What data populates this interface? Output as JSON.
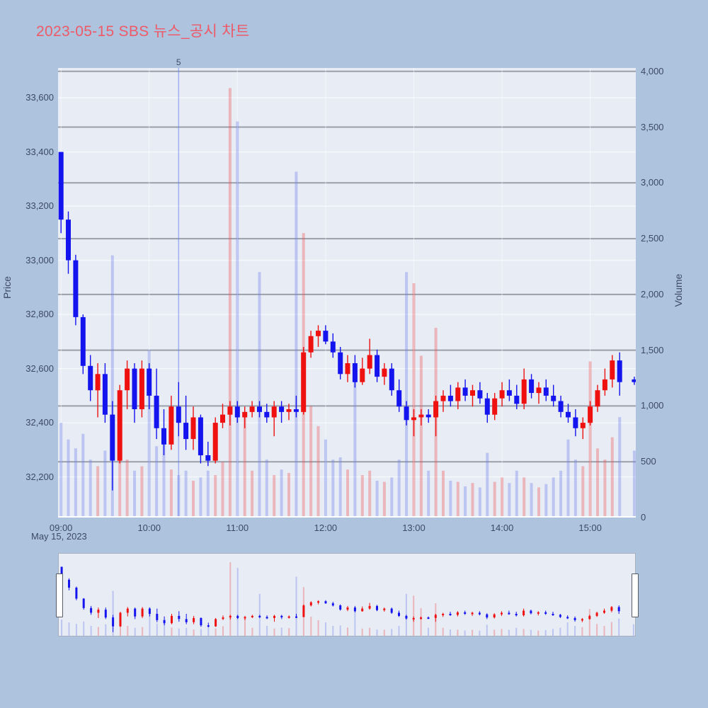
{
  "title": "2023-05-15 SBS 뉴스_공시 차트",
  "date_label": "May 15, 2023",
  "axes": {
    "price_title": "Price",
    "volume_title": "Volume",
    "price_ticks": [
      {
        "label": "33,600",
        "value": 33600
      },
      {
        "label": "33,400",
        "value": 33400
      },
      {
        "label": "33,200",
        "value": 33200
      },
      {
        "label": "33,000",
        "value": 33000
      },
      {
        "label": "32,800",
        "value": 32800
      },
      {
        "label": "32,600",
        "value": 32600
      },
      {
        "label": "32,400",
        "value": 32400
      },
      {
        "label": "32,200",
        "value": 32200
      }
    ],
    "volume_ticks": [
      {
        "label": "4,000",
        "value": 4000
      },
      {
        "label": "3,500",
        "value": 3500
      },
      {
        "label": "3,000",
        "value": 3000
      },
      {
        "label": "2,500",
        "value": 2500
      },
      {
        "label": "2,000",
        "value": 2000
      },
      {
        "label": "1,500",
        "value": 1500
      },
      {
        "label": "1,000",
        "value": 1000
      },
      {
        "label": "500",
        "value": 500
      },
      {
        "label": "0",
        "value": 0
      }
    ],
    "time_ticks": [
      {
        "label": "09:00",
        "minute": 0
      },
      {
        "label": "10:00",
        "minute": 60
      },
      {
        "label": "11:00",
        "minute": 120
      },
      {
        "label": "12:00",
        "minute": 180
      },
      {
        "label": "13:00",
        "minute": 240
      },
      {
        "label": "14:00",
        "minute": 300
      },
      {
        "label": "15:00",
        "minute": 360
      }
    ]
  },
  "annotation": {
    "label": "5",
    "minute": 80,
    "time": "10:20"
  },
  "colors": {
    "page_bg": "#aec3dd",
    "plot_bg": "#e7ecf5",
    "title": "#ee5a68",
    "text": "#3c4a66",
    "grid_volume": "#9aa0aa",
    "grid_price": "#f7f9fd",
    "candle_up": "#ef1010",
    "candle_down": "#1414ef",
    "volume_up": "rgba(240,80,80,0.35)",
    "volume_down": "rgba(110,125,235,0.35)",
    "annotation_line": "rgba(110,130,240,0.55)"
  },
  "chart_data": {
    "type": "candlestick+volume",
    "title": "2023-05-15 SBS 뉴스_공시 차트",
    "date": "2023-05-15",
    "interval_minutes": 5,
    "session_start": "09:00",
    "session_end": "15:30",
    "x_range_minutes": [
      -2,
      391
    ],
    "price_range": [
      32050,
      33710
    ],
    "volume_range": [
      0,
      4030
    ],
    "slider_price_range": [
      32080,
      33650
    ],
    "slider_volume_range": [
      0,
      4300
    ],
    "legend": "none",
    "grid": true,
    "bar_format": [
      "minute_from_0900",
      "open",
      "high",
      "low",
      "close",
      "volume"
    ],
    "bars": [
      [
        0,
        33400,
        33400,
        33100,
        33150,
        850
      ],
      [
        5,
        33150,
        33180,
        32950,
        33000,
        700
      ],
      [
        10,
        33000,
        33020,
        32760,
        32790,
        620
      ],
      [
        15,
        32790,
        32800,
        32580,
        32610,
        750
      ],
      [
        20,
        32610,
        32650,
        32480,
        32520,
        520
      ],
      [
        25,
        32520,
        32620,
        32420,
        32580,
        460
      ],
      [
        30,
        32580,
        32620,
        32400,
        32430,
        600
      ],
      [
        35,
        32430,
        32480,
        32150,
        32260,
        2350
      ],
      [
        40,
        32260,
        32540,
        32250,
        32520,
        900
      ],
      [
        45,
        32520,
        32630,
        32450,
        32600,
        520
      ],
      [
        50,
        32600,
        32620,
        32400,
        32450,
        420
      ],
      [
        55,
        32450,
        32630,
        32420,
        32600,
        460
      ],
      [
        60,
        32600,
        32620,
        32450,
        32500,
        1500
      ],
      [
        65,
        32500,
        32600,
        32340,
        32380,
        640
      ],
      [
        70,
        32380,
        32450,
        32280,
        32320,
        700
      ],
      [
        75,
        32320,
        32500,
        32300,
        32460,
        430
      ],
      [
        80,
        32460,
        32550,
        32350,
        32400,
        380
      ],
      [
        85,
        32400,
        32500,
        32300,
        32340,
        420
      ],
      [
        90,
        32340,
        32460,
        32300,
        32420,
        330
      ],
      [
        95,
        32420,
        32430,
        32250,
        32280,
        360
      ],
      [
        100,
        32280,
        32330,
        32240,
        32260,
        420
      ],
      [
        105,
        32260,
        32420,
        32250,
        32400,
        380
      ],
      [
        110,
        32400,
        32470,
        32380,
        32430,
        500
      ],
      [
        115,
        32430,
        32480,
        32390,
        32460,
        3850
      ],
      [
        120,
        32460,
        32480,
        32400,
        32420,
        3550
      ],
      [
        125,
        32420,
        32460,
        32380,
        32440,
        900
      ],
      [
        130,
        32440,
        32480,
        32420,
        32460,
        420
      ],
      [
        135,
        32460,
        32480,
        32420,
        32440,
        2200
      ],
      [
        140,
        32440,
        32470,
        32400,
        32420,
        520
      ],
      [
        145,
        32420,
        32480,
        32350,
        32460,
        380
      ],
      [
        150,
        32460,
        32480,
        32400,
        32440,
        430
      ],
      [
        155,
        32440,
        32470,
        32410,
        32450,
        400
      ],
      [
        160,
        32450,
        32500,
        32420,
        32440,
        3100
      ],
      [
        165,
        32440,
        32680,
        32430,
        32660,
        2550
      ],
      [
        170,
        32660,
        32740,
        32640,
        32720,
        1000
      ],
      [
        175,
        32720,
        32760,
        32680,
        32740,
        820
      ],
      [
        180,
        32740,
        32760,
        32690,
        32700,
        700
      ],
      [
        185,
        32700,
        32730,
        32640,
        32660,
        520
      ],
      [
        190,
        32660,
        32680,
        32560,
        32580,
        540
      ],
      [
        195,
        32580,
        32650,
        32550,
        32620,
        430
      ],
      [
        200,
        32620,
        32650,
        32530,
        32550,
        1300
      ],
      [
        205,
        32550,
        32640,
        32540,
        32600,
        380
      ],
      [
        210,
        32600,
        32710,
        32580,
        32650,
        420
      ],
      [
        215,
        32650,
        32670,
        32550,
        32570,
        330
      ],
      [
        220,
        32570,
        32620,
        32540,
        32600,
        320
      ],
      [
        225,
        32600,
        32620,
        32500,
        32520,
        360
      ],
      [
        230,
        32520,
        32560,
        32440,
        32460,
        520
      ],
      [
        235,
        32460,
        32480,
        32390,
        32410,
        2200
      ],
      [
        240,
        32410,
        32450,
        32350,
        32420,
        2100
      ],
      [
        245,
        32420,
        32450,
        32390,
        32430,
        1450
      ],
      [
        250,
        32430,
        32450,
        32400,
        32420,
        420
      ],
      [
        255,
        32420,
        32500,
        32350,
        32480,
        1700
      ],
      [
        260,
        32480,
        32520,
        32440,
        32500,
        420
      ],
      [
        265,
        32500,
        32540,
        32460,
        32480,
        330
      ],
      [
        270,
        32480,
        32550,
        32450,
        32530,
        320
      ],
      [
        275,
        32530,
        32560,
        32480,
        32500,
        280
      ],
      [
        280,
        32500,
        32540,
        32460,
        32520,
        310
      ],
      [
        285,
        32520,
        32550,
        32470,
        32490,
        270
      ],
      [
        290,
        32490,
        32510,
        32400,
        32430,
        580
      ],
      [
        295,
        32430,
        32510,
        32410,
        32490,
        320
      ],
      [
        300,
        32490,
        32550,
        32460,
        32520,
        360
      ],
      [
        305,
        32520,
        32560,
        32480,
        32500,
        310
      ],
      [
        310,
        32500,
        32540,
        32450,
        32470,
        420
      ],
      [
        315,
        32470,
        32600,
        32450,
        32560,
        360
      ],
      [
        320,
        32560,
        32580,
        32490,
        32510,
        310
      ],
      [
        325,
        32510,
        32550,
        32470,
        32530,
        270
      ],
      [
        330,
        32530,
        32560,
        32480,
        32500,
        300
      ],
      [
        335,
        32500,
        32540,
        32460,
        32480,
        360
      ],
      [
        340,
        32480,
        32500,
        32420,
        32440,
        420
      ],
      [
        345,
        32440,
        32470,
        32400,
        32420,
        700
      ],
      [
        350,
        32420,
        32450,
        32350,
        32380,
        520
      ],
      [
        355,
        32380,
        32420,
        32340,
        32400,
        460
      ],
      [
        360,
        32400,
        32480,
        32390,
        32460,
        1400
      ],
      [
        365,
        32460,
        32540,
        32440,
        32520,
        620
      ],
      [
        370,
        32520,
        32600,
        32500,
        32560,
        520
      ],
      [
        375,
        32560,
        32650,
        32530,
        32630,
        720
      ],
      [
        380,
        32630,
        32660,
        32500,
        32550,
        900
      ],
      [
        390,
        32560,
        32570,
        32540,
        32550,
        600
      ]
    ]
  }
}
